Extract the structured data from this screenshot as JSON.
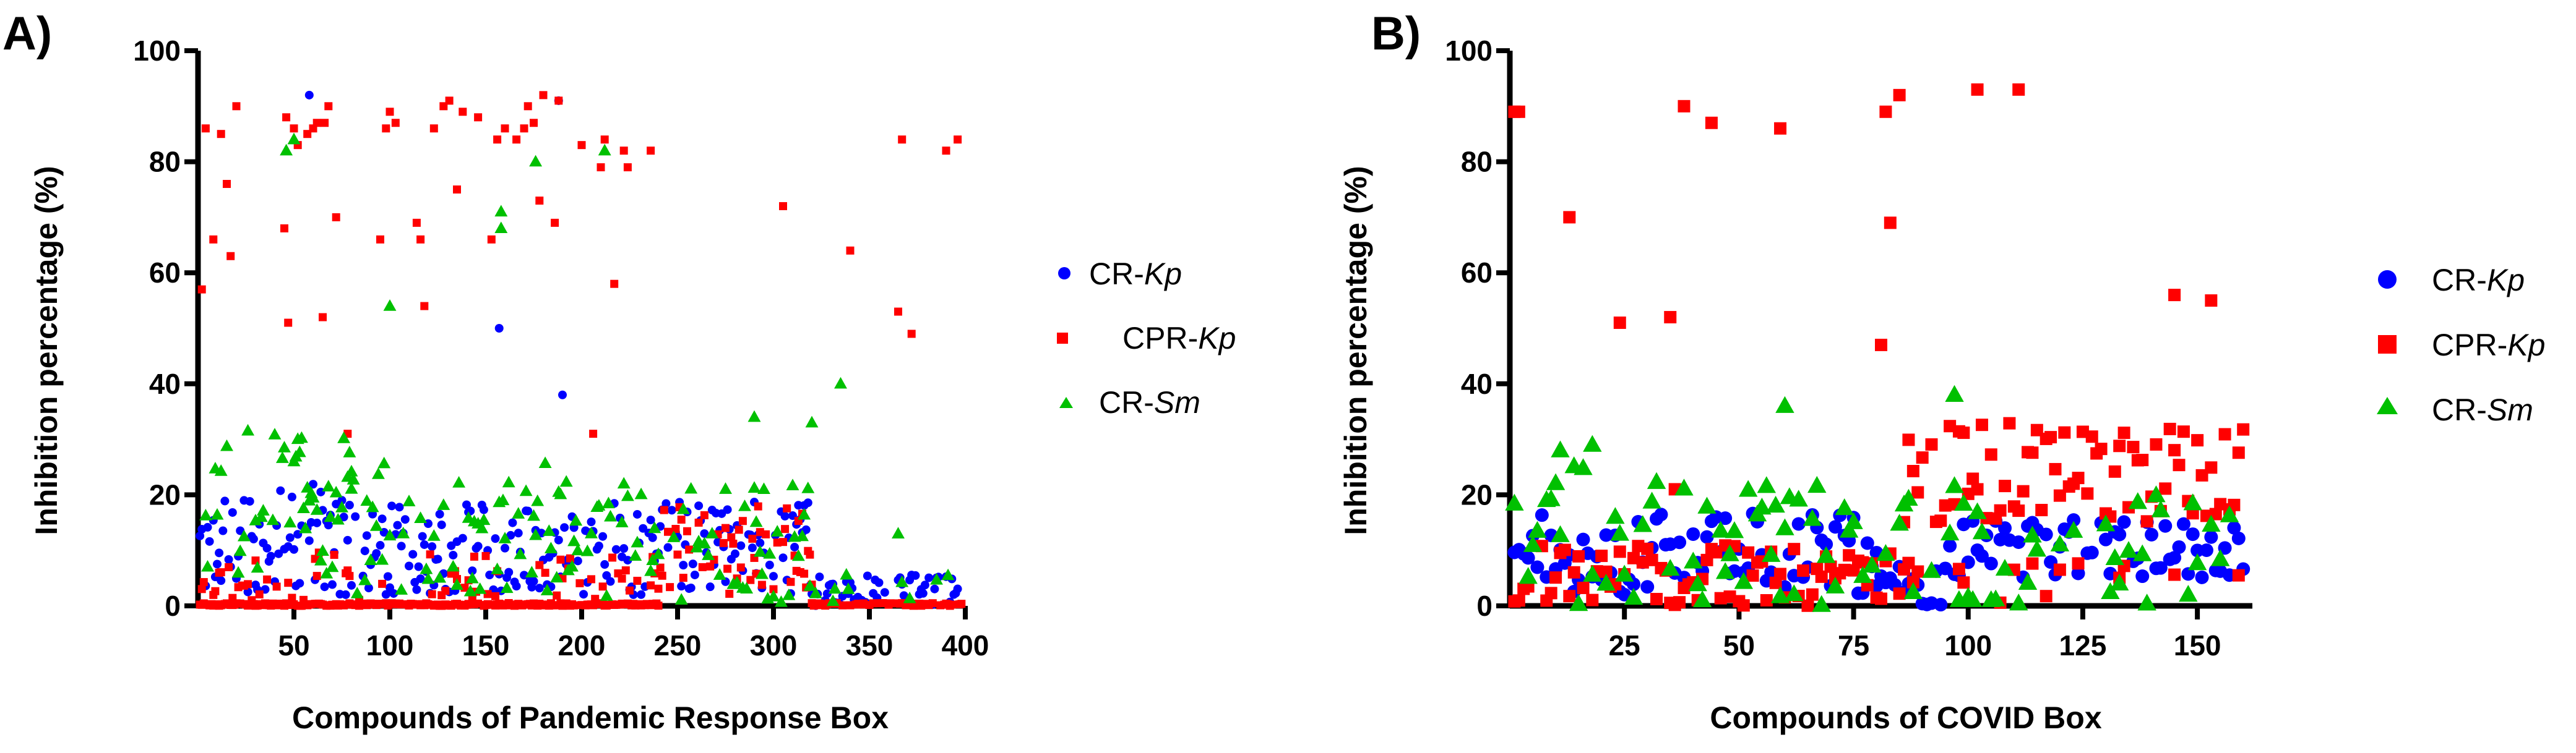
{
  "chart_data": [
    {
      "type": "scatter",
      "panel_label": "A)",
      "xlabel": "Compounds of Pandemic Response Box",
      "ylabel": "Inhibition percentage (%)",
      "xlim": [
        0,
        400
      ],
      "ylim": [
        0,
        100
      ],
      "x_ticks": [
        50,
        100,
        150,
        200,
        250,
        300,
        350,
        400
      ],
      "y_ticks": [
        0,
        20,
        40,
        60,
        80,
        100
      ],
      "n_compounds": 400,
      "legend_position": "right",
      "colors": {
        "CR-Kp": "#0000ff",
        "CPR-Kp": "#ff0000",
        "CR-Sm": "#00c000"
      },
      "series": [
        {
          "name": "CR-Kp",
          "prefix": "CR-",
          "suffix": "Kp",
          "marker": "circle",
          "color": "#0000ff",
          "highlights": [
            [
              58,
              92
            ],
            [
              188,
              91
            ],
            [
              157,
              50
            ],
            [
              190,
              38
            ]
          ],
          "segments": [
            {
              "from": 1,
              "to": 100,
              "min": 2,
              "max": 22,
              "density": 0.8,
              "seed": 11
            },
            {
              "from": 100,
              "to": 320,
              "min": 2,
              "max": 19,
              "density": 0.75,
              "seed": 12
            },
            {
              "from": 320,
              "to": 400,
              "min": 0,
              "max": 6,
              "density": 0.6,
              "seed": 13
            }
          ]
        },
        {
          "name": "CPR-Kp",
          "prefix": "CPR-",
          "suffix": "Kp",
          "marker": "square",
          "color": "#ff0000",
          "highlights": [
            [
              2,
              57
            ],
            [
              4,
              86
            ],
            [
              8,
              66
            ],
            [
              12,
              85
            ],
            [
              15,
              76
            ],
            [
              17,
              63
            ],
            [
              20,
              90
            ],
            [
              45,
              68
            ],
            [
              46,
              88
            ],
            [
              47,
              51
            ],
            [
              50,
              86
            ],
            [
              52,
              83
            ],
            [
              57,
              85
            ],
            [
              60,
              86
            ],
            [
              62,
              87
            ],
            [
              65,
              52
            ],
            [
              66,
              87
            ],
            [
              68,
              90
            ],
            [
              72,
              70
            ],
            [
              78,
              31
            ],
            [
              95,
              66
            ],
            [
              98,
              86
            ],
            [
              100,
              89
            ],
            [
              103,
              87
            ],
            [
              114,
              69
            ],
            [
              116,
              66
            ],
            [
              118,
              54
            ],
            [
              123,
              86
            ],
            [
              128,
              90
            ],
            [
              131,
              91
            ],
            [
              135,
              75
            ],
            [
              138,
              89
            ],
            [
              146,
              88
            ],
            [
              153,
              66
            ],
            [
              156,
              84
            ],
            [
              160,
              86
            ],
            [
              166,
              84
            ],
            [
              170,
              86
            ],
            [
              172,
              90
            ],
            [
              175,
              87
            ],
            [
              178,
              73
            ],
            [
              180,
              92
            ],
            [
              186,
              69
            ],
            [
              188,
              91
            ],
            [
              200,
              83
            ],
            [
              206,
              31
            ],
            [
              210,
              79
            ],
            [
              212,
              84
            ],
            [
              217,
              58
            ],
            [
              222,
              82
            ],
            [
              224,
              79
            ],
            [
              236,
              82
            ],
            [
              305,
              72
            ],
            [
              340,
              64
            ],
            [
              365,
              53
            ],
            [
              367,
              84
            ],
            [
              372,
              49
            ],
            [
              390,
              82
            ],
            [
              396,
              84
            ]
          ],
          "segments": [
            {
              "from": 1,
              "to": 240,
              "min": 0,
              "max": 0.5,
              "density": 0.85,
              "seed": 21
            },
            {
              "from": 1,
              "to": 240,
              "min": 1,
              "max": 10,
              "density": 0.25,
              "seed": 22
            },
            {
              "from": 240,
              "to": 320,
              "min": 2,
              "max": 18,
              "density": 0.7,
              "seed": 23
            },
            {
              "from": 320,
              "to": 400,
              "min": 0,
              "max": 0.5,
              "density": 0.5,
              "seed": 24
            }
          ]
        },
        {
          "name": "CR-Sm",
          "prefix": "CR-",
          "suffix": "Sm",
          "marker": "triangle",
          "color": "#00c000",
          "highlights": [
            [
              46,
              82
            ],
            [
              50,
              84
            ],
            [
              100,
              54
            ],
            [
              158,
              71
            ],
            [
              158,
              68
            ],
            [
              176,
              80
            ],
            [
              212,
              82
            ],
            [
              222,
              22
            ],
            [
              335,
              40
            ],
            [
              290,
              34
            ],
            [
              320,
              33
            ],
            [
              365,
              13
            ]
          ],
          "segments": [
            {
              "from": 1,
              "to": 80,
              "min": 5,
              "max": 32,
              "density": 0.65,
              "seed": 31
            },
            {
              "from": 80,
              "to": 200,
              "min": 2,
              "max": 26,
              "density": 0.5,
              "seed": 32
            },
            {
              "from": 200,
              "to": 320,
              "min": 0,
              "max": 22,
              "density": 0.45,
              "seed": 33
            },
            {
              "from": 320,
              "to": 400,
              "min": 0,
              "max": 6,
              "density": 0.12,
              "seed": 34
            }
          ]
        }
      ]
    },
    {
      "type": "scatter",
      "panel_label": "B)",
      "xlabel": "Compounds of COVID Box",
      "ylabel": "Inhibition percentage (%)",
      "xlim": [
        0,
        162
      ],
      "ylim": [
        0,
        100
      ],
      "x_ticks": [
        25,
        50,
        75,
        100,
        125,
        150
      ],
      "y_ticks": [
        0,
        20,
        40,
        60,
        80,
        100
      ],
      "n_compounds": 160,
      "legend_position": "right",
      "colors": {
        "CR-Kp": "#0000ff",
        "CPR-Kp": "#ff0000",
        "CR-Sm": "#00c000"
      },
      "series": [
        {
          "name": "CR-Kp",
          "prefix": "CR-",
          "suffix": "Kp",
          "marker": "circle",
          "color": "#0000ff",
          "highlights": [],
          "segments": [
            {
              "from": 1,
              "to": 80,
              "min": 2,
              "max": 17,
              "density": 0.95,
              "seed": 41
            },
            {
              "from": 80,
              "to": 95,
              "min": 0,
              "max": 8,
              "density": 0.9,
              "seed": 42
            },
            {
              "from": 95,
              "to": 160,
              "min": 5,
              "max": 16,
              "density": 0.95,
              "seed": 43
            }
          ]
        },
        {
          "name": "CPR-Kp",
          "prefix": "CPR-",
          "suffix": "Kp",
          "marker": "square",
          "color": "#ff0000",
          "highlights": [
            [
              1,
              89
            ],
            [
              2,
              89
            ],
            [
              13,
              70
            ],
            [
              24,
              51
            ],
            [
              35,
              52
            ],
            [
              36,
              21
            ],
            [
              38,
              90
            ],
            [
              44,
              87
            ],
            [
              59,
              86
            ],
            [
              81,
              47
            ],
            [
              82,
              89
            ],
            [
              83,
              69
            ],
            [
              85,
              92
            ],
            [
              102,
              93
            ],
            [
              111,
              93
            ],
            [
              145,
              56
            ],
            [
              153,
              55
            ]
          ],
          "segments": [
            {
              "from": 1,
              "to": 85,
              "min": 0,
              "max": 11,
              "density": 0.9,
              "seed": 51
            },
            {
              "from": 86,
              "to": 160,
              "min": 15,
              "max": 33,
              "density": 0.95,
              "seed": 52
            },
            {
              "from": 86,
              "to": 160,
              "min": 0,
              "max": 8,
              "density": 0.15,
              "seed": 53
            }
          ]
        },
        {
          "name": "CR-Sm",
          "prefix": "CR-",
          "suffix": "Sm",
          "marker": "triangle",
          "color": "#00c000",
          "highlights": [
            [
              60,
              36
            ],
            [
              97,
              38
            ],
            [
              18,
              29
            ],
            [
              11,
              28
            ]
          ],
          "segments": [
            {
              "from": 1,
              "to": 40,
              "min": 0,
              "max": 26,
              "density": 0.7,
              "seed": 61
            },
            {
              "from": 40,
              "to": 100,
              "min": 0,
              "max": 22,
              "density": 0.6,
              "seed": 62
            },
            {
              "from": 100,
              "to": 160,
              "min": 0,
              "max": 20,
              "density": 0.55,
              "seed": 63
            }
          ]
        }
      ]
    }
  ]
}
